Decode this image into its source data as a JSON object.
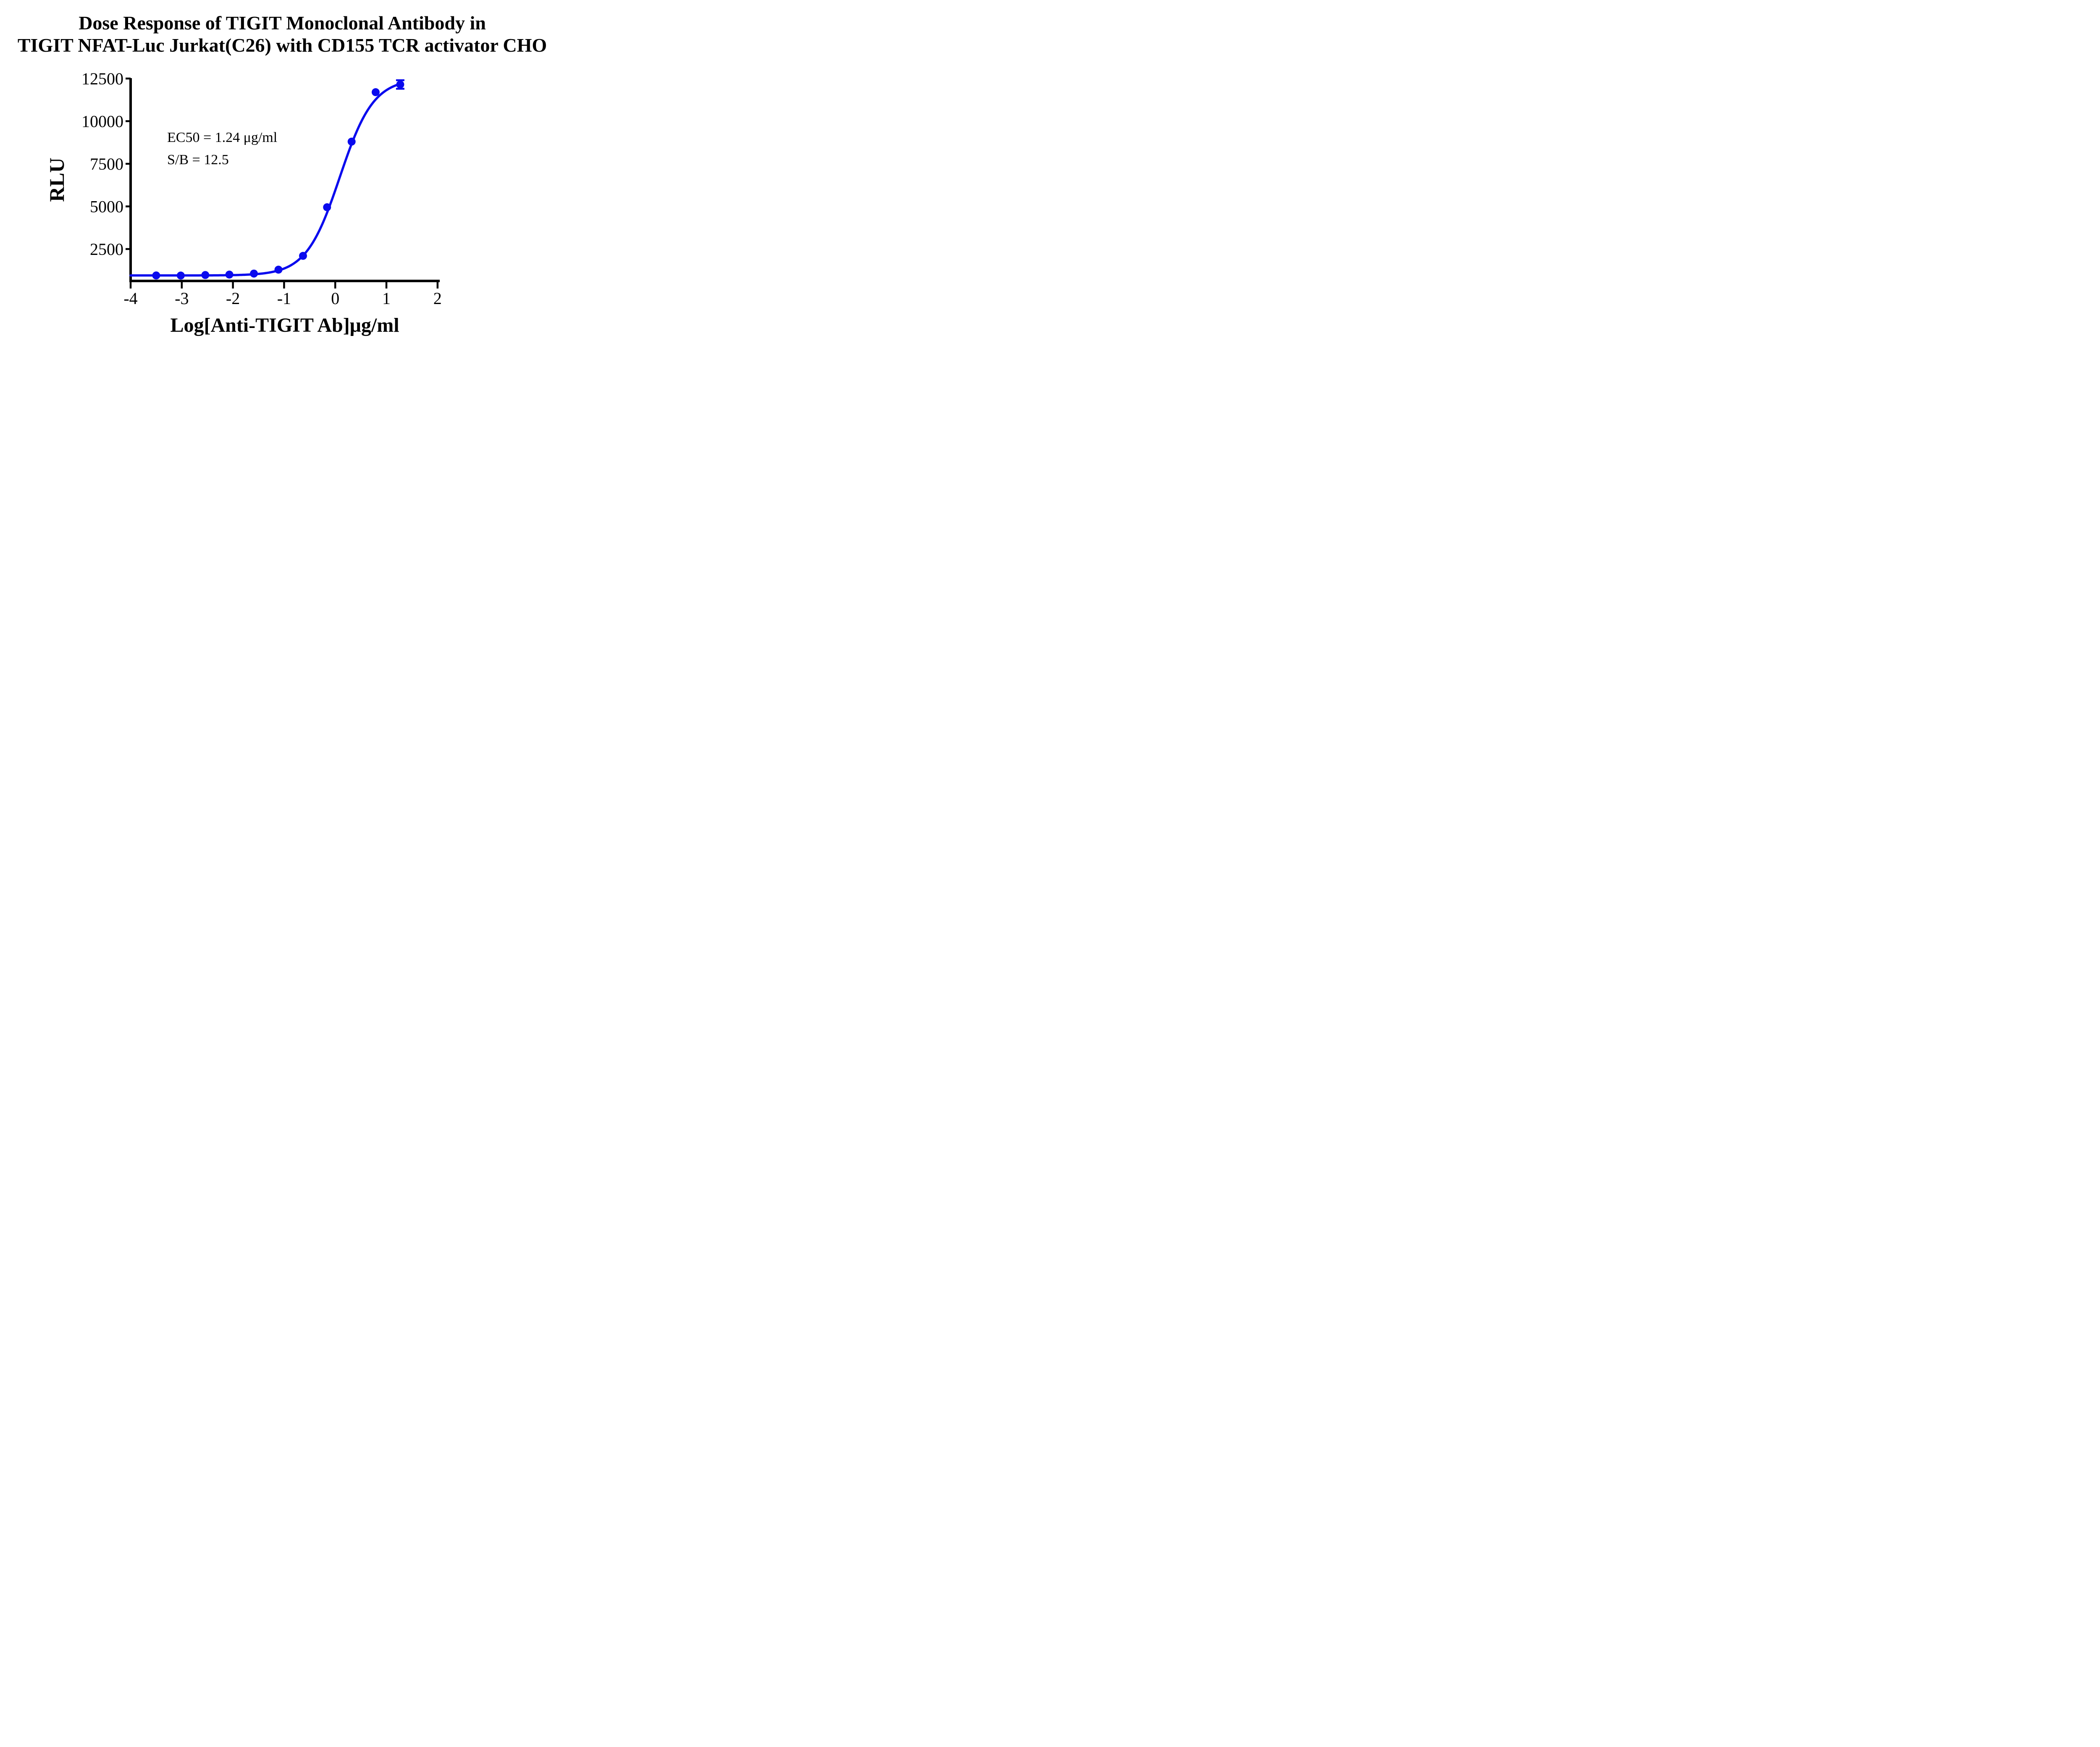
{
  "figure": {
    "title_line1": "Dose Response of TIGIT Monoclonal Antibody in",
    "title_line2": "TIGIT NFAT-Luc Jurkat(C26) with CD155 TCR activator CHO"
  },
  "annotation": {
    "line1": "EC50 = 1.24 μg/ml",
    "line2": "S/B = 12.5"
  },
  "axes": {
    "x_label": "Log[Anti-TIGIT Ab]μg/ml",
    "y_label": "RLU"
  },
  "colors": {
    "curve": "#0a0aee",
    "axis": "#000000",
    "text": "#000000",
    "background": "#ffffff"
  },
  "chart_data": {
    "type": "scatter",
    "title": "Dose Response of TIGIT Monoclonal Antibody in TIGIT NFAT-Luc Jurkat(C26) with CD155 TCR activator CHO",
    "xlabel": "Log[Anti-TIGIT Ab]μg/ml",
    "ylabel": "RLU",
    "annotations": [
      "EC50 = 1.24 μg/ml",
      "S/B = 12.5"
    ],
    "ec50_ug_ml": 1.24,
    "signal_to_background": 12.5,
    "x_ticks": [
      -4,
      -3,
      -2,
      -1,
      0,
      1,
      2
    ],
    "y_ticks": [
      2500,
      5000,
      7500,
      10000,
      12500
    ],
    "xlim": [
      -4,
      2
    ],
    "ylim": [
      630,
      12500
    ],
    "grid": false,
    "legend": "none",
    "series": [
      {
        "name": "Anti-TIGIT Ab",
        "marker": "circle",
        "color": "#0a0aee",
        "x": [
          -3.5,
          -3.02,
          -2.54,
          -2.07,
          -1.59,
          -1.11,
          -0.63,
          -0.16,
          0.32,
          0.79,
          1.27
        ],
        "y": [
          950,
          945,
          975,
          1000,
          1060,
          1290,
          2100,
          4950,
          8800,
          11700,
          12150
        ],
        "error_y": [
          0,
          0,
          0,
          0,
          0,
          0,
          0,
          0,
          0,
          0,
          250
        ]
      }
    ],
    "fit_curve": {
      "model": "four_parameter_logistic",
      "bottom": 950,
      "top": 12500,
      "log_ec50": 0.09,
      "hill": 1.32,
      "x_start": -4,
      "x_end": 1.3
    }
  }
}
